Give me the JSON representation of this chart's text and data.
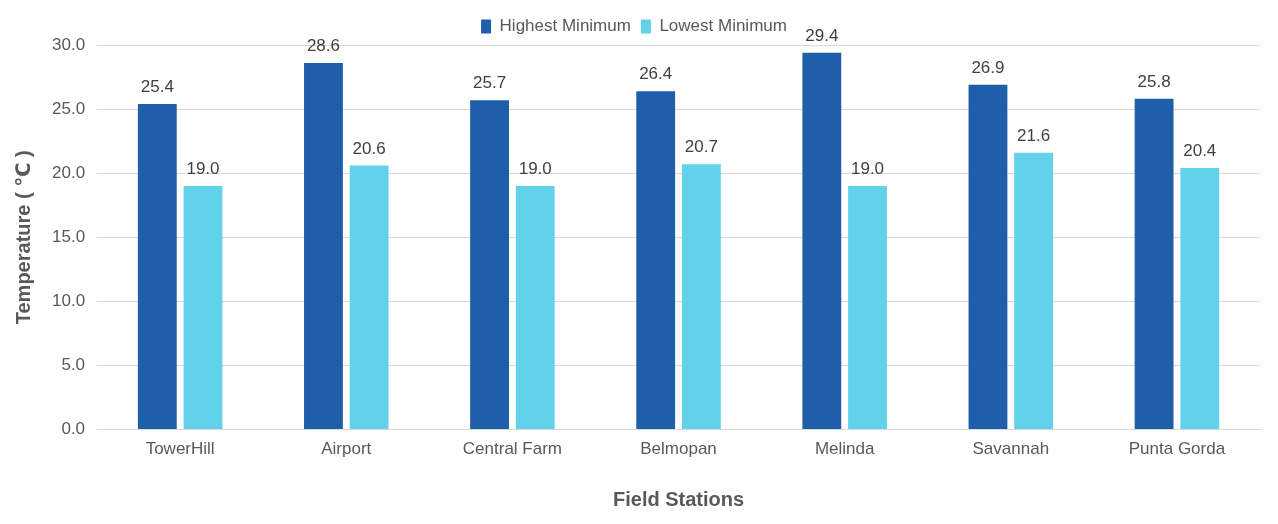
{
  "chart_data": {
    "type": "bar",
    "xlabel": "Field Stations",
    "ylabel": "Temperature ( ℃ )",
    "categories": [
      "TowerHill",
      "Airport",
      "Central Farm",
      "Belmopan",
      "Melinda",
      "Savannah",
      "Punta Gorda"
    ],
    "series": [
      {
        "name": "Highest Minimum",
        "color": "#1f5ea8",
        "values": [
          25.4,
          28.6,
          25.7,
          26.4,
          29.4,
          26.9,
          25.8
        ],
        "value_labels": [
          "25.4",
          "28.6",
          "25.7",
          "26.4",
          "29.4",
          "26.9",
          "25.8"
        ]
      },
      {
        "name": "Lowest Minimum",
        "color": "#62d2ea",
        "values": [
          19.0,
          20.6,
          19.0,
          20.7,
          19.0,
          21.6,
          20.4
        ],
        "value_labels": [
          "19.0",
          "20.6",
          "19.0",
          "20.7",
          "19.0",
          "21.6",
          "20.4"
        ]
      }
    ],
    "ylim": [
      0,
      30
    ],
    "yticks": [
      {
        "value": 0,
        "label": "0.0"
      },
      {
        "value": 5,
        "label": "5.0"
      },
      {
        "value": 10,
        "label": "10.0"
      },
      {
        "value": 15,
        "label": "15.0"
      },
      {
        "value": 20,
        "label": "20.0"
      },
      {
        "value": 25,
        "label": "25.0"
      },
      {
        "value": 30,
        "label": "30.0"
      }
    ],
    "grid": "y",
    "legend": "top"
  }
}
